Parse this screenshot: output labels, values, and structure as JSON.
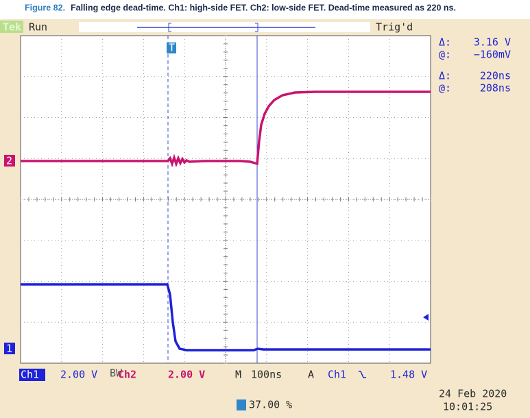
{
  "caption": {
    "label": "Figure 82.",
    "text": "Falling edge dead-time. Ch1: high-side FET. Ch2: low-side FET. Dead-time measured as 220 ns."
  },
  "status": {
    "brand": "Tek",
    "state": "Run",
    "trigger": "Trig'd"
  },
  "markers": {
    "ch2": "2",
    "ch1": "1",
    "trigger": "T"
  },
  "readout": [
    {
      "label": "Δ:",
      "value": "3.16 V"
    },
    {
      "label": "@:",
      "value": "−160mV"
    },
    {
      "label": "Δ:",
      "value": "220ns"
    },
    {
      "label": "@:",
      "value": "208ns"
    }
  ],
  "settings": {
    "ch1": "Ch1",
    "ch1_scale": "2.00 V",
    "bw": "BW",
    "ch2": "Ch2",
    "ch2_scale": "2.00 V",
    "time_label": "M",
    "time_scale": "100ns",
    "trig_label": "A",
    "trig_source": "Ch1",
    "trig_level": "1.48 V"
  },
  "trigger_position": "37.00 %",
  "date": "24 Feb 2020",
  "time": "10:01:25"
}
